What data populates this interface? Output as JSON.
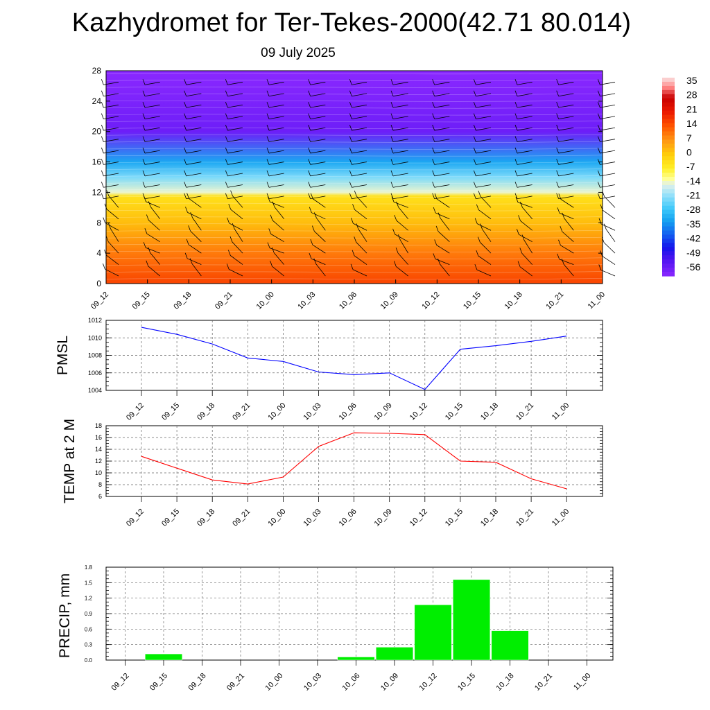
{
  "title": "Kazhydromet for Ter-Tekes-2000(42.71 80.014)",
  "subtitle": "09 July 2025",
  "time_labels": [
    "09_12",
    "09_15",
    "09_18",
    "09_21",
    "10_00",
    "10_03",
    "10_06",
    "10_09",
    "10_12",
    "10_15",
    "10_18",
    "10_21",
    "11_00"
  ],
  "chart_data": [
    {
      "type": "heatmap",
      "title": "",
      "ylabel": "",
      "y_ticks": [
        0,
        4,
        8,
        12,
        16,
        20,
        24,
        28
      ],
      "ylim": [
        0,
        28
      ],
      "x": [
        "09_12",
        "09_15",
        "09_18",
        "09_21",
        "10_00",
        "10_03",
        "10_06",
        "10_09",
        "10_12",
        "10_15",
        "10_18",
        "10_21",
        "11_00"
      ],
      "colorbar": {
        "labels": [
          "35",
          "28",
          "21",
          "14",
          "7",
          "0",
          "-7",
          "-14",
          "-21",
          "-28",
          "-35",
          "-42",
          "-49",
          "-56"
        ],
        "range": [
          -60,
          38
        ]
      },
      "temperature_profile": [
        {
          "level": 0,
          "value": 16
        },
        {
          "level": 4,
          "value": 10
        },
        {
          "level": 8,
          "value": 2
        },
        {
          "level": 11.5,
          "value": -4
        },
        {
          "level": 12,
          "value": -14
        },
        {
          "level": 14,
          "value": -22
        },
        {
          "level": 16,
          "value": -32
        },
        {
          "level": 20,
          "value": -56
        },
        {
          "level": 24,
          "value": -58
        },
        {
          "level": 28,
          "value": -60
        }
      ],
      "grid": false,
      "overlay": "wind barbs"
    },
    {
      "type": "line",
      "ylabel": "PMSL",
      "ylim": [
        1004,
        1012
      ],
      "y_ticks": [
        "1004",
        "1006",
        "1008",
        "1010",
        "1012"
      ],
      "x": [
        "09_12",
        "09_15",
        "09_18",
        "09_21",
        "10_00",
        "10_03",
        "10_06",
        "10_09",
        "10_12",
        "10_15",
        "10_18",
        "10_21",
        "11_00"
      ],
      "values": [
        1011.2,
        1010.4,
        1009.3,
        1007.7,
        1007.3,
        1006.1,
        1005.8,
        1006.0,
        1004.1,
        1008.7,
        1009.1,
        1009.6,
        1010.2
      ],
      "color": "#0000ff",
      "grid": true
    },
    {
      "type": "line",
      "ylabel": "TEMP at 2 M",
      "ylim": [
        6,
        18
      ],
      "y_ticks": [
        "6",
        "8",
        "10",
        "12",
        "14",
        "16",
        "18"
      ],
      "x": [
        "09_12",
        "09_15",
        "09_18",
        "09_21",
        "10_00",
        "10_03",
        "10_06",
        "10_09",
        "10_12",
        "10_15",
        "10_18",
        "10_21",
        "11_00"
      ],
      "values": [
        12.8,
        10.8,
        8.8,
        8.1,
        9.3,
        14.5,
        16.8,
        16.7,
        16.5,
        12.0,
        11.8,
        9.0,
        7.3
      ],
      "color": "#ff0000",
      "grid": true
    },
    {
      "type": "bar",
      "ylabel": "PRECIP, mm",
      "ylim": [
        0,
        1.8
      ],
      "y_ticks": [
        "0.0",
        "0.3",
        "0.6",
        "0.9",
        "1.2",
        "1.5",
        "1.8"
      ],
      "categories": [
        "09_12",
        "09_15",
        "09_18",
        "09_21",
        "10_00",
        "10_03",
        "10_06",
        "10_09",
        "10_12",
        "10_15",
        "10_18",
        "10_21",
        "11_00"
      ],
      "values": [
        0,
        0.12,
        0,
        0,
        0,
        0,
        0.06,
        0.25,
        1.07,
        1.56,
        0.57,
        0,
        0
      ],
      "color": "#00ee00",
      "grid": true
    }
  ]
}
